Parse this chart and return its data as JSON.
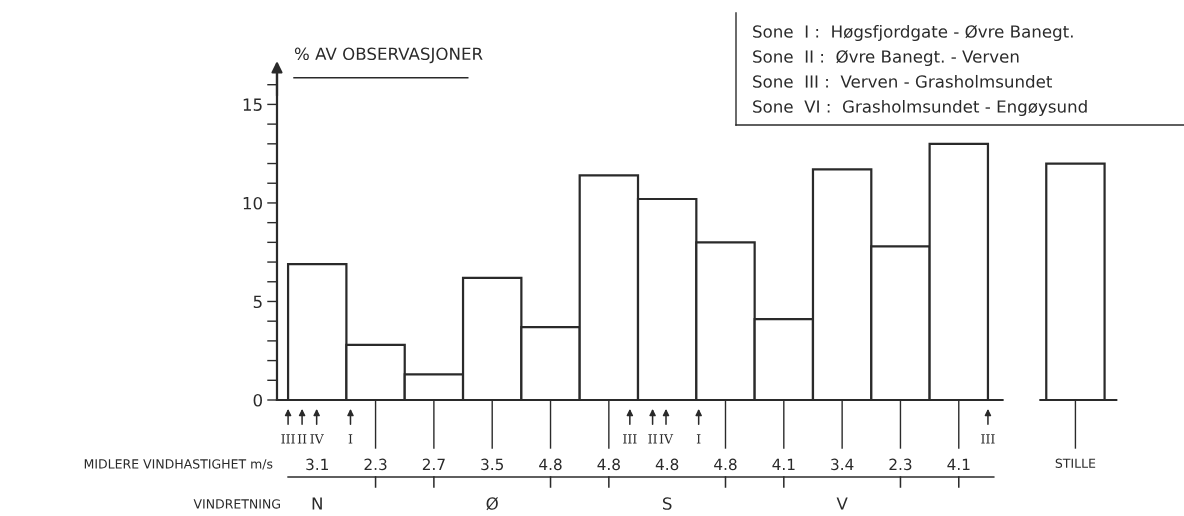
{
  "chart_data": {
    "type": "bar",
    "ylabel": "% AV OBSERVASJONER",
    "categories": [
      "3.1",
      "2.3",
      "2.7",
      "3.5",
      "4.8",
      "4.8",
      "4.8",
      "4.8",
      "4.1",
      "3.4",
      "2.3",
      "4.1",
      "STILLE"
    ],
    "values": [
      6.9,
      2.8,
      1.3,
      6.2,
      3.7,
      11.4,
      10.2,
      8.0,
      4.1,
      11.7,
      7.8,
      13.0,
      12.0
    ],
    "color": "#ffffff",
    "ylim": [
      0,
      17
    ],
    "yticks": [
      0,
      {
        "value": 1,
        "label": null
      },
      {
        "value": 2,
        "label": null
      },
      {
        "value": 3,
        "label": null
      },
      {
        "value": 4,
        "label": null
      },
      5,
      {
        "value": 6,
        "label": null
      },
      {
        "value": 7,
        "label": null
      },
      {
        "value": 8,
        "label": null
      },
      {
        "value": 9,
        "label": null
      },
      10,
      {
        "value": 11,
        "label": null
      },
      {
        "value": 12,
        "label": null
      },
      {
        "value": 13,
        "label": null
      },
      {
        "value": 14,
        "label": null
      },
      15,
      {
        "value": 16,
        "label": null
      }
    ],
    "grid": false,
    "annotations": [
      "Sone  I :  Høgsfjordgate - Øvre Banegt.",
      "Sone  II :  Øvre Banegt. - Verven",
      "Sone  III :  Verven - Grasholmsundet",
      "Sone  VI :  Grasholmsundet - Engøysund",
      "MIDLERE VINDHASTIGHET m/s",
      "VINDRETNING",
      "N",
      "Ø",
      "S",
      "V",
      "III",
      "II",
      "IV",
      "I",
      "III",
      "II",
      "IV",
      "I",
      "III"
    ]
  }
}
